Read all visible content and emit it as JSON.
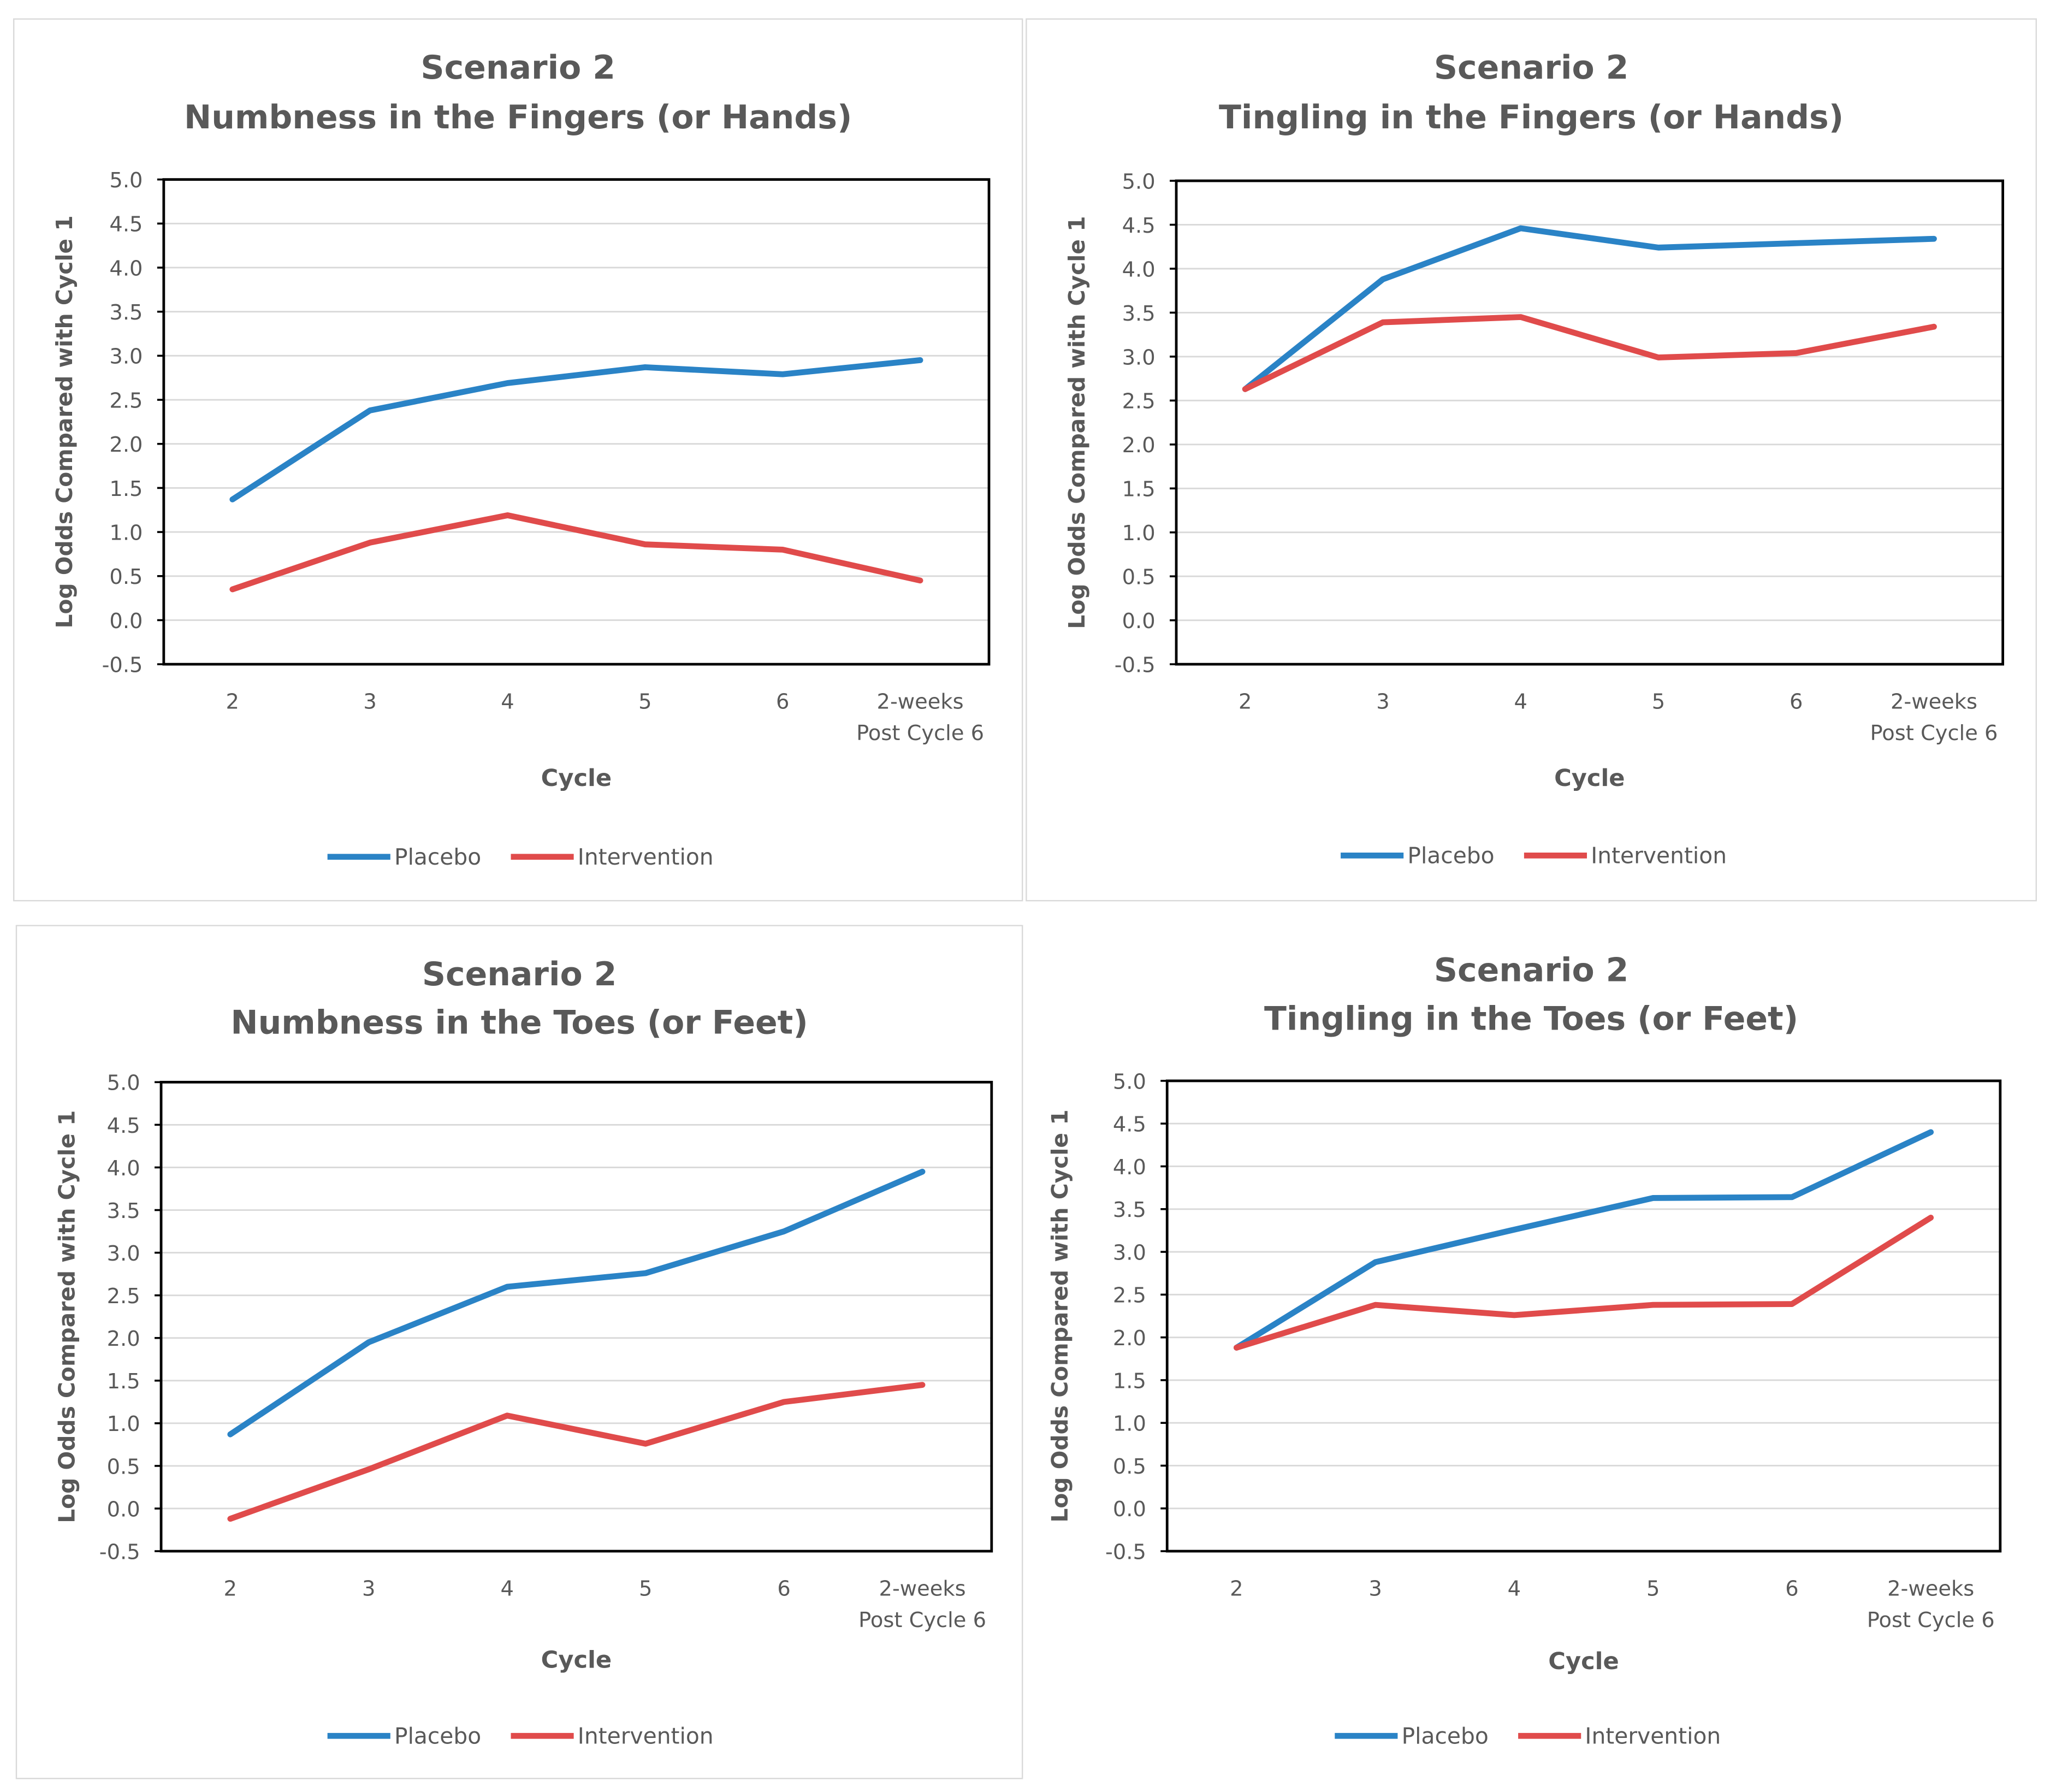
{
  "colors": {
    "placebo": "#2a83c6",
    "intervention": "#e04b4b",
    "grid": "#d9d9d9",
    "axis": "#000000",
    "text": "#595959"
  },
  "chart_data": [
    {
      "type": "line",
      "title_line1": "Scenario 2",
      "title_line2": "Numbness in the Fingers (or Hands)",
      "xlabel": "Cycle",
      "ylabel": "Log Odds Compared with Cycle 1",
      "ylim": [
        -0.5,
        5.0
      ],
      "yticks": [
        "5.0",
        "4.5",
        "4.0",
        "3.5",
        "3.0",
        "2.5",
        "2.0",
        "1.5",
        "1.0",
        "0.5",
        "0.0",
        "-0.5"
      ],
      "grid": true,
      "legend": "bottom",
      "categories": [
        "2",
        "3",
        "4",
        "5",
        "6",
        "2-weeks Post Cycle 6"
      ],
      "series": [
        {
          "name": "Placebo",
          "color": "#2a83c6",
          "values": [
            1.37,
            2.38,
            2.69,
            2.87,
            2.79,
            2.95
          ]
        },
        {
          "name": "Intervention",
          "color": "#e04b4b",
          "values": [
            0.35,
            0.88,
            1.19,
            0.86,
            0.8,
            0.45
          ]
        }
      ]
    },
    {
      "type": "line",
      "title_line1": "Scenario 2",
      "title_line2": "Tingling in the Fingers (or Hands)",
      "xlabel": "Cycle",
      "ylabel": "Log Odds Compared with Cycle 1",
      "ylim": [
        -0.5,
        5.0
      ],
      "yticks": [
        "5.0",
        "4.5",
        "4.0",
        "3.5",
        "3.0",
        "2.5",
        "2.0",
        "1.5",
        "1.0",
        "0.5",
        "0.0",
        "-0.5"
      ],
      "grid": true,
      "legend": "bottom",
      "categories": [
        "2",
        "3",
        "4",
        "5",
        "6",
        "2-weeks Post Cycle 6"
      ],
      "series": [
        {
          "name": "Placebo",
          "color": "#2a83c6",
          "values": [
            2.63,
            3.88,
            4.46,
            4.24,
            4.29,
            4.34
          ]
        },
        {
          "name": "Intervention",
          "color": "#e04b4b",
          "values": [
            2.63,
            3.39,
            3.45,
            2.99,
            3.04,
            3.34
          ]
        }
      ]
    },
    {
      "type": "line",
      "title_line1": "Scenario 2",
      "title_line2": "Numbness in the Toes (or Feet)",
      "xlabel": "Cycle",
      "ylabel": "Log Odds Compared with Cycle 1",
      "ylim": [
        -0.5,
        5.0
      ],
      "yticks": [
        "5.0",
        "4.5",
        "4.0",
        "3.5",
        "3.0",
        "2.5",
        "2.0",
        "1.5",
        "1.0",
        "0.5",
        "0.0",
        "-0.5"
      ],
      "grid": true,
      "legend": "bottom",
      "categories": [
        "2",
        "3",
        "4",
        "5",
        "6",
        "2-weeks Post Cycle 6"
      ],
      "series": [
        {
          "name": "Placebo",
          "color": "#2a83c6",
          "values": [
            0.87,
            1.95,
            2.6,
            2.76,
            3.25,
            3.95
          ]
        },
        {
          "name": "Intervention",
          "color": "#e04b4b",
          "values": [
            -0.12,
            0.46,
            1.09,
            0.76,
            1.25,
            1.45
          ]
        }
      ]
    },
    {
      "type": "line",
      "title_line1": "Scenario 2",
      "title_line2": "Tingling in the Toes (or Feet)",
      "xlabel": "Cycle",
      "ylabel": "Log Odds Compared with Cycle 1",
      "ylim": [
        -0.5,
        5.0
      ],
      "yticks": [
        "5.0",
        "4.5",
        "4.0",
        "3.5",
        "3.0",
        "2.5",
        "2.0",
        "1.5",
        "1.0",
        "0.5",
        "0.0",
        "-0.5"
      ],
      "grid": true,
      "legend": "bottom",
      "categories": [
        "2",
        "3",
        "4",
        "5",
        "6",
        "2-weeks Post Cycle 6"
      ],
      "series": [
        {
          "name": "Placebo",
          "color": "#2a83c6",
          "values": [
            1.88,
            2.88,
            3.26,
            3.63,
            3.64,
            4.4
          ]
        },
        {
          "name": "Intervention",
          "color": "#e04b4b",
          "values": [
            1.88,
            2.38,
            2.26,
            2.38,
            2.39,
            3.4
          ]
        }
      ]
    }
  ]
}
